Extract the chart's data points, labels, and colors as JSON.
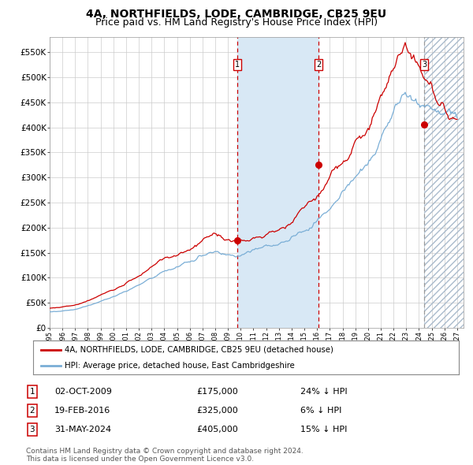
{
  "title": "4A, NORTHFIELDS, LODE, CAMBRIDGE, CB25 9EU",
  "subtitle": "Price paid vs. HM Land Registry's House Price Index (HPI)",
  "legend_label_red": "4A, NORTHFIELDS, LODE, CAMBRIDGE, CB25 9EU (detached house)",
  "legend_label_blue": "HPI: Average price, detached house, East Cambridgeshire",
  "footer1": "Contains HM Land Registry data © Crown copyright and database right 2024.",
  "footer2": "This data is licensed under the Open Government Licence v3.0.",
  "sales": [
    {
      "label": "1",
      "date": "02-OCT-2009",
      "price": 175000,
      "pct": "24%",
      "dir": "↓"
    },
    {
      "label": "2",
      "date": "19-FEB-2016",
      "price": 325000,
      "pct": "6%",
      "dir": "↓"
    },
    {
      "label": "3",
      "date": "31-MAY-2024",
      "price": 405000,
      "pct": "15%",
      "dir": "↓"
    }
  ],
  "sale_dates_decimal": [
    2009.75,
    2016.12,
    2024.42
  ],
  "sale_prices": [
    175000,
    325000,
    405000
  ],
  "ylim": [
    0,
    580000
  ],
  "yticks": [
    0,
    50000,
    100000,
    150000,
    200000,
    250000,
    300000,
    350000,
    400000,
    450000,
    500000,
    550000
  ],
  "ytick_labels": [
    "£0",
    "£50K",
    "£100K",
    "£150K",
    "£200K",
    "£250K",
    "£300K",
    "£350K",
    "£400K",
    "£450K",
    "£500K",
    "£550K"
  ],
  "xtick_years": [
    1995,
    1996,
    1997,
    1998,
    1999,
    2000,
    2001,
    2002,
    2003,
    2004,
    2005,
    2006,
    2007,
    2008,
    2009,
    2010,
    2011,
    2012,
    2013,
    2014,
    2015,
    2016,
    2017,
    2018,
    2019,
    2020,
    2021,
    2022,
    2023,
    2024,
    2025,
    2026,
    2027
  ],
  "shaded_region": [
    2009.75,
    2016.12
  ],
  "hatch_region_start": 2024.42,
  "hatch_region_end": 2027.5,
  "bg_color": "#ffffff",
  "grid_color": "#cccccc",
  "red_color": "#cc0000",
  "blue_color": "#7aaed6",
  "shade_color": "#d8e8f5",
  "title_fontsize": 10,
  "subtitle_fontsize": 9,
  "axis_fontsize": 7.5
}
